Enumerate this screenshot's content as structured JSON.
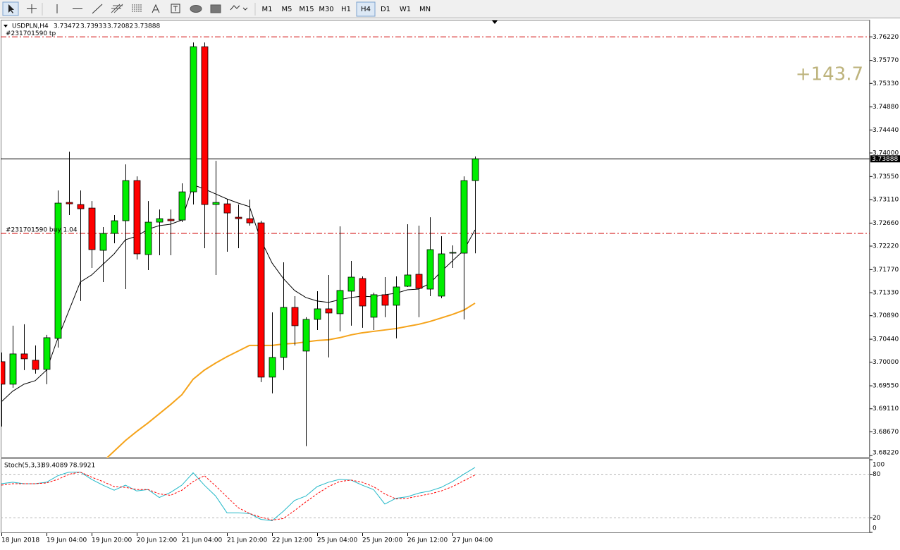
{
  "toolbar": {
    "timeframes": [
      "M1",
      "M5",
      "M15",
      "M30",
      "H1",
      "H4",
      "D1",
      "W1",
      "MN"
    ],
    "active": "H4"
  },
  "chart_data": [
    {
      "type": "candlestick",
      "title": "USDPLN,H4",
      "categories": [
        "18 Jun 2018",
        null,
        null,
        null,
        "19 Jun 04:00",
        null,
        null,
        null,
        "19 Jun 20:00",
        null,
        null,
        null,
        "20 Jun 12:00",
        null,
        null,
        null,
        "21 Jun 04:00",
        null,
        null,
        null,
        "21 Jun 20:00",
        null,
        null,
        null,
        "22 Jun 12:00",
        null,
        null,
        null,
        "25 Jun 04:00",
        null,
        null,
        null,
        "25 Jun 20:00",
        null,
        null,
        null,
        "26 Jun 12:00",
        null,
        null,
        null,
        "27 Jun 04:00",
        null,
        null
      ],
      "open": [
        3.70011,
        3.6958,
        3.70159,
        3.70038,
        3.69863,
        3.70456,
        3.73055,
        3.73015,
        3.72947,
        3.72139,
        3.72462,
        3.72705,
        3.73473,
        3.72058,
        3.72678,
        3.72732,
        3.72718,
        3.73257,
        3.76031,
        3.73015,
        3.73028,
        3.72772,
        3.72745,
        3.72664,
        3.69715,
        3.70092,
        3.71048,
        3.70213,
        3.70819,
        3.71021,
        3.70927,
        3.71358,
        3.71601,
        3.7086,
        3.71291,
        3.71089,
        3.71452,
        3.71681,
        3.71398,
        3.71264,
        3.72085,
        3.72085,
        3.73472
      ],
      "high": [
        3.70186,
        3.70698,
        3.70725,
        3.70321,
        3.70523,
        3.73284,
        3.74025,
        3.73284,
        3.73082,
        3.72584,
        3.72813,
        3.73782,
        3.73553,
        3.73082,
        3.7292,
        3.7292,
        3.73419,
        3.76112,
        3.76112,
        3.7385,
        3.73122,
        3.73015,
        3.73109,
        3.72705,
        3.70954,
        3.7191,
        3.71264,
        3.7086,
        3.71358,
        3.71668,
        3.72597,
        3.71937,
        3.71641,
        3.71331,
        3.71627,
        3.71641,
        3.72638,
        3.72611,
        3.72772,
        3.72409,
        3.72234,
        3.73553,
        3.73933
      ],
      "low": [
        3.68772,
        3.69513,
        3.6985,
        3.69782,
        3.6958,
        3.70281,
        3.72813,
        3.7117,
        3.71803,
        3.71533,
        3.72274,
        3.71398,
        3.71964,
        3.71762,
        3.72045,
        3.72045,
        3.72678,
        3.73015,
        3.7218,
        3.71668,
        3.72112,
        3.7218,
        3.72611,
        3.69621,
        3.69405,
        3.6985,
        3.70321,
        3.68395,
        3.70617,
        3.70092,
        3.7059,
        3.70698,
        3.70658,
        3.70617,
        3.7086,
        3.70456,
        3.71439,
        3.7086,
        3.71264,
        3.71223,
        3.71803,
        3.70819,
        3.72082
      ],
      "close": [
        3.6958,
        3.70159,
        3.70065,
        3.69863,
        3.70469,
        3.73042,
        3.73028,
        3.72934,
        3.72153,
        3.72462,
        3.72705,
        3.73473,
        3.72072,
        3.72678,
        3.72745,
        3.72705,
        3.73257,
        3.76031,
        3.73015,
        3.73055,
        3.72853,
        3.72745,
        3.72664,
        3.69715,
        3.70092,
        3.71048,
        3.70698,
        3.70819,
        3.71021,
        3.70941,
        3.71372,
        3.71627,
        3.71075,
        3.71291,
        3.71089,
        3.71439,
        3.71668,
        3.71412,
        3.72153,
        3.72072,
        3.72099,
        3.73472,
        3.73888
      ],
      "up_color": "#00ee00",
      "down_color": "#ff0000",
      "lines": [
        {
          "color": "#000000",
          "values": [
            3.69244,
            3.69446,
            3.6958,
            3.69648,
            3.6985,
            3.70456,
            3.70994,
            3.71533,
            3.71668,
            3.7187,
            3.72072,
            3.72341,
            3.72409,
            3.72543,
            3.72611,
            3.72638,
            3.72718,
            3.73392,
            3.73311,
            3.73217,
            3.73122,
            3.73042,
            3.72974,
            3.72341,
            3.71897,
            3.71601,
            3.71372,
            3.71237,
            3.7117,
            3.71143,
            3.71196,
            3.71237,
            3.71264,
            3.7125,
            3.71291,
            3.71318,
            3.71385,
            3.71398,
            3.71506,
            3.71735,
            3.71937,
            3.72139,
            3.7253
          ]
        },
        {
          "color": "#f5a31a",
          "values": [
            null,
            null,
            null,
            null,
            null,
            null,
            null,
            null,
            null,
            3.68099,
            3.68301,
            3.68503,
            3.68678,
            3.6884,
            3.69015,
            3.6919,
            3.69378,
            3.69675,
            3.6985,
            3.69984,
            3.70106,
            3.70213,
            3.70321,
            3.70321,
            3.70321,
            3.70348,
            3.70361,
            3.70388,
            3.70415,
            3.70429,
            3.70469,
            3.70523,
            3.70563,
            3.7059,
            3.70617,
            3.70644,
            3.70685,
            3.70725,
            3.70779,
            3.70846,
            3.70914,
            3.70994,
            3.71129
          ]
        }
      ],
      "orders": [
        {
          "label": "#231701590 tp",
          "value": 3.7622
        },
        {
          "label": "#231701590 buy 1.04",
          "value": 3.72462
        }
      ],
      "annotation": "+143.7",
      "ylim": [
        3.6819,
        3.7652
      ],
      "yticks": [
        {
          "value": 3.6822,
          "label": "3.68220"
        },
        {
          "value": 3.6867,
          "label": "3.68670"
        },
        {
          "value": 3.6911,
          "label": "3.69110"
        },
        {
          "value": 3.6955,
          "label": "3.69550"
        },
        {
          "value": 3.7,
          "label": "3.70000"
        },
        {
          "value": 3.7044,
          "label": "3.70440"
        },
        {
          "value": 3.7089,
          "label": "3.70890"
        },
        {
          "value": 3.7133,
          "label": "3.71330"
        },
        {
          "value": 3.7177,
          "label": "3.71770"
        },
        {
          "value": 3.7222,
          "label": "3.72220"
        },
        {
          "value": 3.7266,
          "label": "3.72660"
        },
        {
          "value": 3.7311,
          "label": "3.73110"
        },
        {
          "value": 3.7355,
          "label": "3.73550"
        },
        {
          "value": 3.74,
          "label": "3.74000"
        },
        {
          "value": 3.7444,
          "label": "3.74440"
        },
        {
          "value": 3.7488,
          "label": "3.74880"
        },
        {
          "value": 3.7533,
          "label": "3.75330"
        },
        {
          "value": 3.7577,
          "label": "3.75770"
        },
        {
          "value": 3.7622,
          "label": "3.76220"
        }
      ]
    },
    {
      "type": "line",
      "title": "Stoch(5,3,3)",
      "series": [
        {
          "color": "#22b8c8",
          "dashed": false,
          "values": [
            67,
            69,
            67,
            67,
            69,
            78,
            83,
            83,
            73,
            65,
            58,
            65,
            57,
            59,
            48,
            55,
            65,
            82,
            65,
            50,
            27,
            27,
            26,
            18,
            16,
            29,
            44,
            50,
            63,
            69,
            73,
            72,
            65,
            59,
            39,
            47,
            49,
            54,
            57,
            62,
            70,
            80,
            89.4089
          ]
        },
        {
          "color": "#ff0000",
          "dashed": true,
          "values": [
            65,
            67,
            67,
            67,
            68,
            73,
            80,
            83,
            76,
            70,
            63,
            62,
            59,
            59,
            53,
            51,
            58,
            70,
            78,
            64,
            49,
            34,
            26,
            21,
            17,
            19,
            30,
            42,
            53,
            63,
            70,
            72,
            69,
            63,
            53,
            46,
            47,
            50,
            53,
            57,
            63,
            71,
            78.9921
          ]
        }
      ],
      "ylim": [
        0,
        100
      ],
      "yticks": [
        0,
        20,
        80,
        100
      ]
    }
  ]
}
